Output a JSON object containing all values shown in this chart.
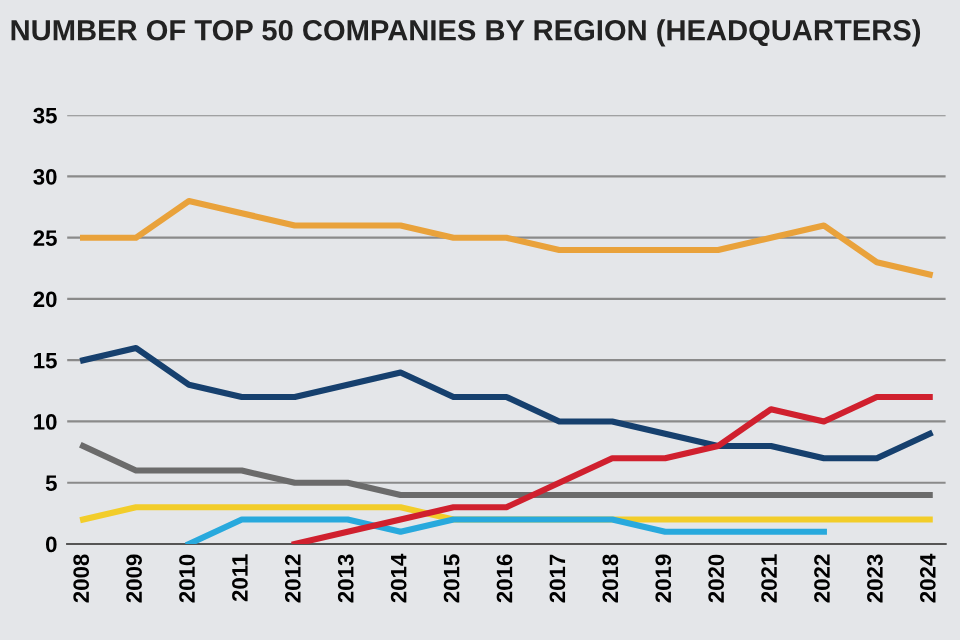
{
  "chart_data": {
    "type": "line",
    "title": "NUMBER OF TOP 50 COMPANIES BY REGION (HEADQUARTERS)",
    "categories": [
      "2008",
      "2009",
      "2010",
      "2011",
      "2012",
      "2013",
      "2014",
      "2015",
      "2016",
      "2017",
      "2018",
      "2019",
      "2020",
      "2021",
      "2022",
      "2023",
      "2024"
    ],
    "series": [
      {
        "color": "#e9a23b",
        "values": [
          25,
          25,
          28,
          27,
          26,
          26,
          26,
          25,
          25,
          24,
          24,
          24,
          24,
          25,
          26,
          23,
          22
        ]
      },
      {
        "color": "#16406e",
        "values": [
          15,
          16,
          13,
          12,
          12,
          13,
          14,
          12,
          12,
          10,
          10,
          9,
          8,
          8,
          7,
          7,
          9
        ]
      },
      {
        "color": "#6b6b6b",
        "values": [
          8,
          6,
          6,
          6,
          5,
          5,
          4,
          4,
          4,
          4,
          4,
          4,
          4,
          4,
          4,
          4,
          4
        ]
      },
      {
        "color": "#f2cd2a",
        "values": [
          2,
          3,
          3,
          3,
          3,
          3,
          3,
          2,
          2,
          2,
          2,
          2,
          2,
          2,
          2,
          2,
          2
        ]
      },
      {
        "color": "#28a9dd",
        "values": [
          null,
          null,
          0,
          2,
          2,
          2,
          1,
          2,
          2,
          2,
          2,
          1,
          1,
          1,
          1,
          null,
          null
        ]
      },
      {
        "color": "#d0202e",
        "values": [
          null,
          null,
          null,
          null,
          0,
          1,
          2,
          3,
          3,
          5,
          7,
          7,
          8,
          11,
          10,
          12,
          12
        ]
      }
    ],
    "ylim": [
      0,
      35
    ],
    "yticks": [
      0,
      5,
      10,
      15,
      20,
      25,
      30,
      35
    ],
    "grid": "y",
    "marker": "none",
    "line_style": "solid"
  }
}
